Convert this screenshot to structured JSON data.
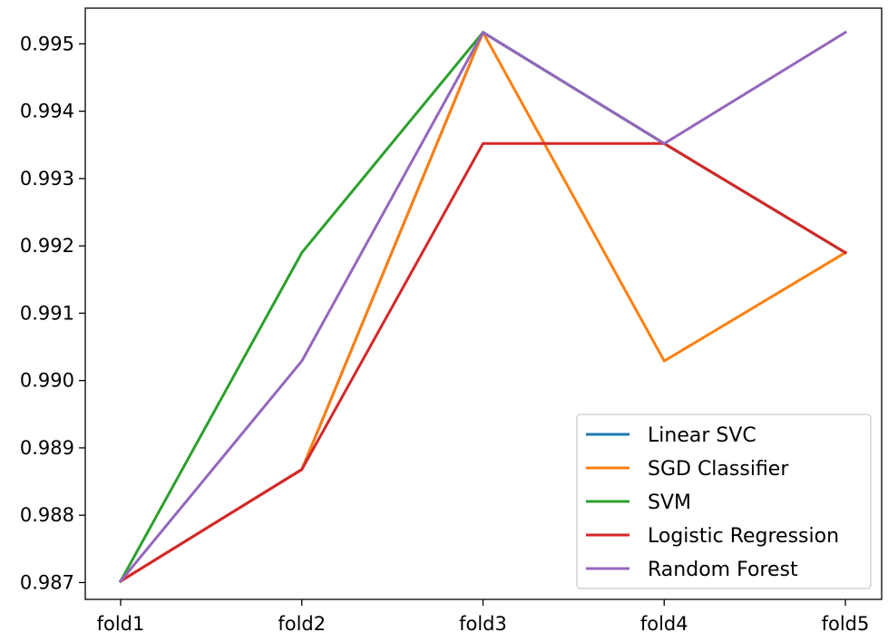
{
  "chart_data": {
    "type": "line",
    "categories": [
      "fold1",
      "fold2",
      "fold3",
      "fold4",
      "fold5"
    ],
    "ylim": [
      0.98675,
      0.99553
    ],
    "yticks": [
      "0.987",
      "0.988",
      "0.989",
      "0.990",
      "0.991",
      "0.992",
      "0.993",
      "0.994",
      "0.995"
    ],
    "grid": false,
    "legend_position": "lower-right",
    "series": [
      {
        "name": "Linear SVC",
        "color": "#1f77b4",
        "values": [
          0.98702,
          0.98868,
          0.99517,
          0.99352,
          0.9919
        ]
      },
      {
        "name": "SGD Classifier",
        "color": "#ff7f0e",
        "values": [
          0.98702,
          0.98868,
          0.99517,
          0.99029,
          0.9919
        ]
      },
      {
        "name": "SVM",
        "color": "#2ca02c",
        "values": [
          0.98702,
          0.9919,
          0.99517,
          0.99352,
          0.9919
        ]
      },
      {
        "name": "Logistic Regression",
        "color": "#d62728",
        "values": [
          0.98702,
          0.98868,
          0.99352,
          0.99352,
          0.9919
        ]
      },
      {
        "name": "Random Forest",
        "color": "#9467bd",
        "values": [
          0.98702,
          0.99029,
          0.99517,
          0.99352,
          0.99517
        ]
      }
    ]
  }
}
